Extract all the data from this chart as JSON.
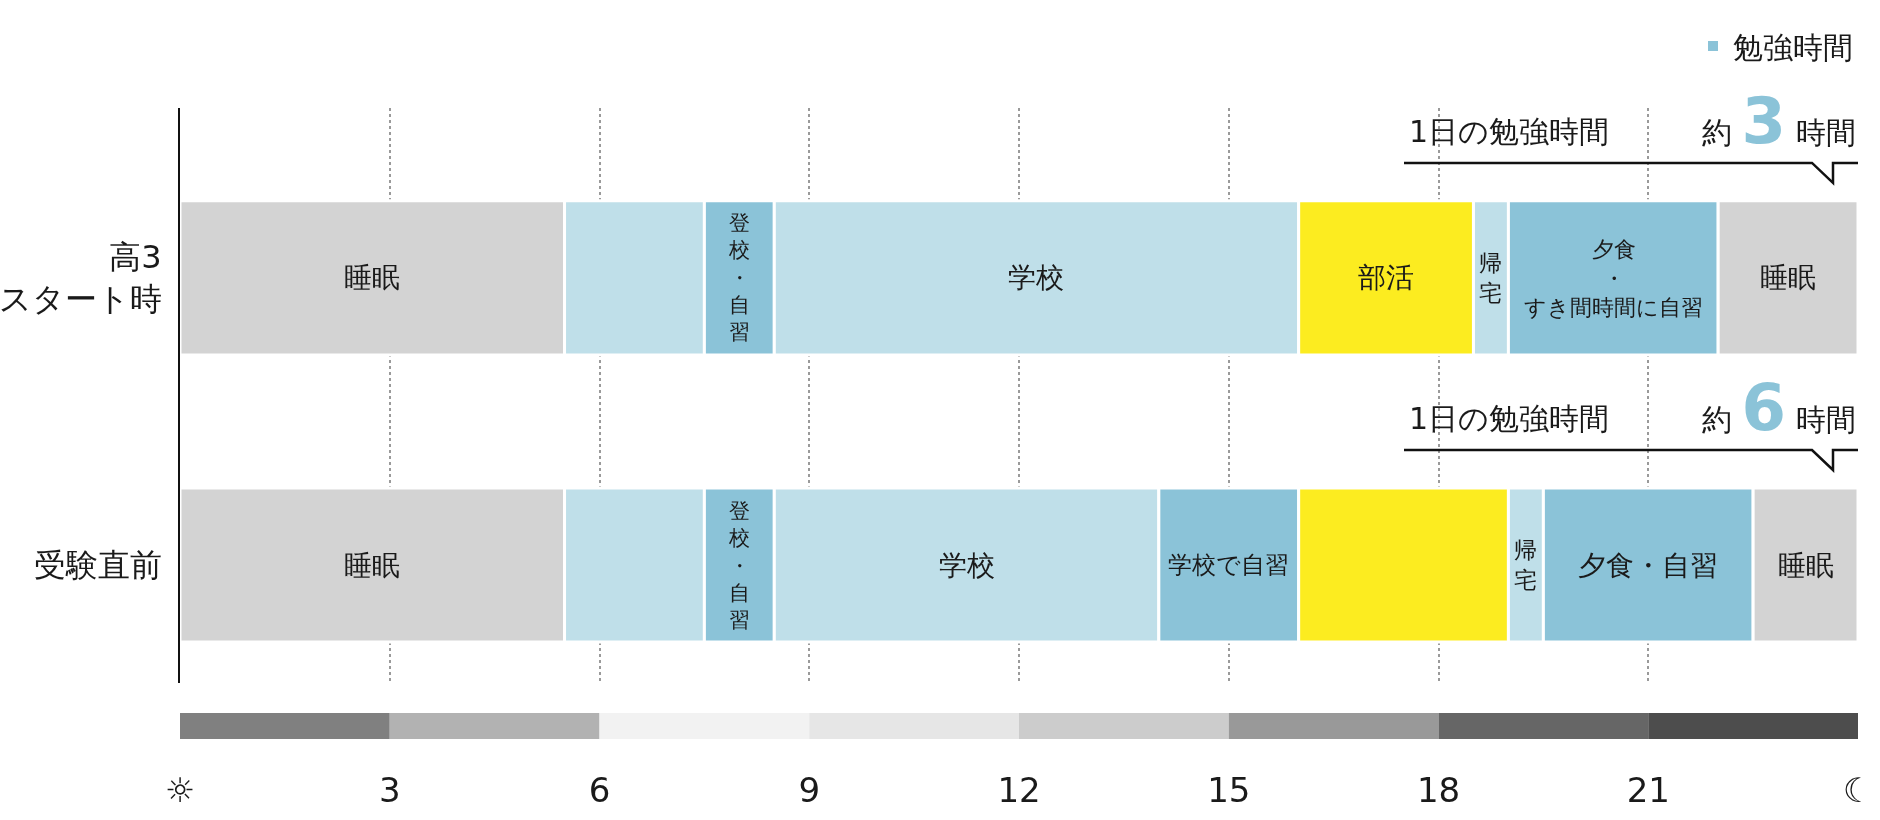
{
  "chart_data": {
    "type": "bar",
    "orientation": "horizontal",
    "stacked": true,
    "categories": [
      "高3\nスタート時",
      "受験直前"
    ],
    "xlim": [
      0,
      24
    ],
    "xticks": [
      {
        "value": 0,
        "label": "☼"
      },
      3,
      6,
      9,
      12,
      15,
      18,
      21,
      {
        "value": 24,
        "label": "☾"
      }
    ],
    "grid": "x",
    "legend": "top right",
    "series": [
      {
        "color": "#d3d3d3",
        "values": [
          5.5,
          5.5
        ],
        "value_labels": [
          "睡眠",
          "睡眠"
        ]
      },
      {
        "color": "#bfdfe9",
        "values": [
          2,
          2
        ]
      },
      {
        "name": "勉強時間",
        "color": "#8bc3d8",
        "values": [
          1,
          1
        ],
        "value_labels": [
          "登校・自習",
          "登校・自習"
        ]
      },
      {
        "color": "#bfdfe9",
        "values": [
          7.5,
          5.5
        ],
        "value_labels": [
          "学校",
          "学校"
        ]
      },
      {
        "color": "#8bc3d8",
        "values": [
          null,
          2
        ],
        "value_labels": [
          null,
          "学校で自習"
        ]
      },
      {
        "color": "#fcec20",
        "values": [
          2.5,
          3
        ],
        "value_labels": [
          "部活",
          null
        ]
      },
      {
        "color": "#bfdfe9",
        "values": [
          0.5,
          0.5
        ],
        "value_labels": [
          "帰宅",
          "帰宅"
        ]
      },
      {
        "color": "#8bc3d8",
        "values": [
          3,
          3
        ],
        "value_labels": [
          "夕食・すき間時間に自習",
          "夕食・自習"
        ]
      },
      {
        "color": "#d3d3d3",
        "values": [
          2,
          1.5
        ],
        "value_labels": [
          "睡眠",
          "睡眠"
        ]
      }
    ],
    "annotations": [
      "1日の勉強時間",
      "約3時間",
      "1日の勉強時間",
      "約6時間"
    ]
  }
}
